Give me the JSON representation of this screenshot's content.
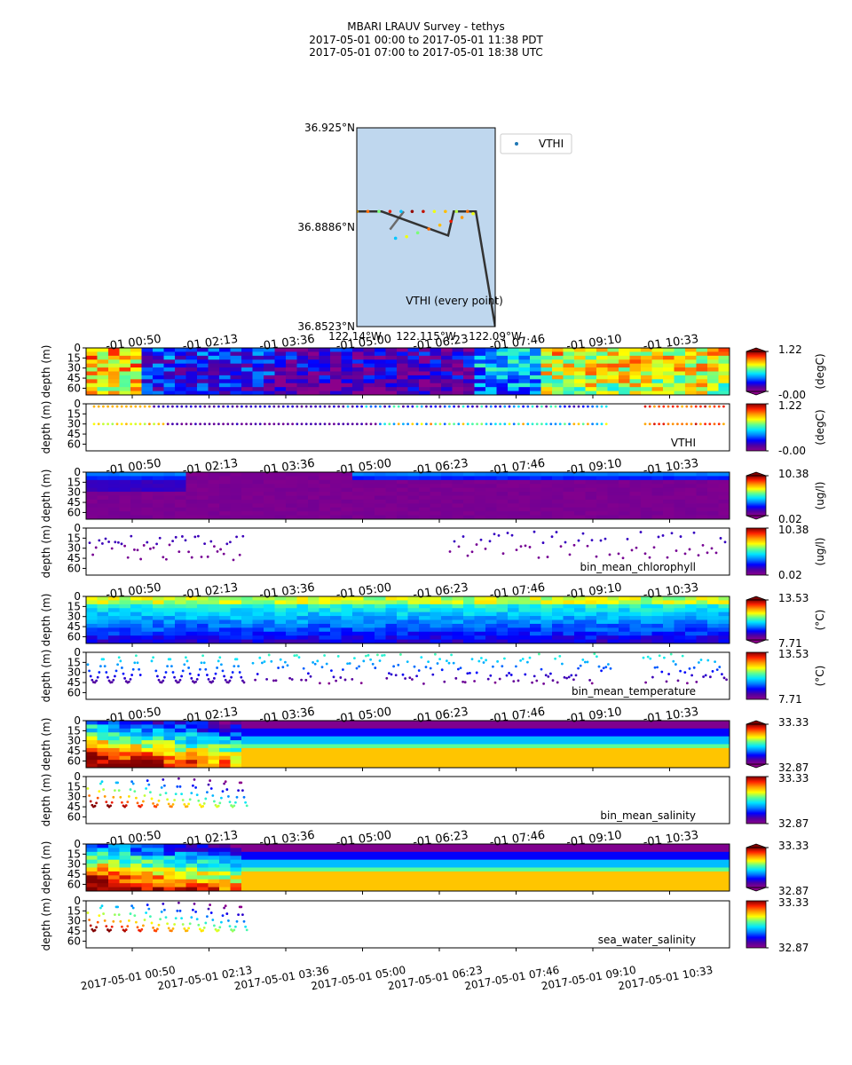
{
  "figure": {
    "title_lines": [
      "MBARI LRAUV Survey - tethys",
      "2017-05-01 00:00  to  2017-05-01 11:38 PDT",
      "2017-05-01 07:00  to  2017-05-01 18:38 UTC"
    ]
  },
  "colors": {
    "map_water": "#bfd7ee",
    "track_line": "#333333",
    "legend_marker": "#1f77b4",
    "colormap": [
      "#8b008b",
      "#5000a0",
      "#0000ff",
      "#0080ff",
      "#00e5ff",
      "#60ff90",
      "#ffff00",
      "#ff9900",
      "#ff2000",
      "#800000"
    ]
  },
  "chart_data": [
    {
      "type": "scatter",
      "panel": "map",
      "lat_ticks": [
        "36.925°N",
        "36.8886°N",
        "36.8523°N"
      ],
      "lon_ticks": [
        "122.14°W",
        "122.115°W",
        "122.09°W"
      ],
      "lat_range": [
        36.8523,
        36.925
      ],
      "lon_range": [
        -122.14,
        -122.09
      ],
      "legend": "VTHI",
      "legend_position": "outside top-right",
      "annotation": "VTHI (every point)",
      "track": [
        {
          "lon": -122.141,
          "lat": 36.8944
        },
        {
          "lon": -122.131,
          "lat": 36.8944
        },
        {
          "lon": -122.107,
          "lat": 36.8856
        },
        {
          "lon": -122.105,
          "lat": 36.8944
        },
        {
          "lon": -122.097,
          "lat": 36.8944
        },
        {
          "lon": -122.09,
          "lat": 36.8523
        }
      ],
      "faint_track": [
        {
          "lon": -122.123,
          "lat": 36.8944
        },
        {
          "lon": -122.128,
          "lat": 36.8878
        }
      ],
      "samples": [
        {
          "lon": -122.14,
          "lat": 36.8944,
          "value": 0.9
        },
        {
          "lon": -122.136,
          "lat": 36.8944,
          "value": 1.0
        },
        {
          "lon": -122.132,
          "lat": 36.8944,
          "value": 0.7
        },
        {
          "lon": -122.128,
          "lat": 36.8944,
          "value": 1.1
        },
        {
          "lon": -122.124,
          "lat": 36.8944,
          "value": 0.5
        },
        {
          "lon": -122.12,
          "lat": 36.8944,
          "value": 1.2
        },
        {
          "lon": -122.116,
          "lat": 36.8944,
          "value": 1.15
        },
        {
          "lon": -122.112,
          "lat": 36.8944,
          "value": 0.8
        },
        {
          "lon": -122.108,
          "lat": 36.8944,
          "value": 0.9
        },
        {
          "lon": -122.104,
          "lat": 36.8944,
          "value": 0.75
        },
        {
          "lon": -122.1,
          "lat": 36.8944,
          "value": 1.0
        },
        {
          "lon": -122.098,
          "lat": 36.8936,
          "value": 0.8
        },
        {
          "lon": -122.102,
          "lat": 36.8922,
          "value": 0.95
        },
        {
          "lon": -122.106,
          "lat": 36.8908,
          "value": 1.1
        },
        {
          "lon": -122.11,
          "lat": 36.8894,
          "value": 0.9
        },
        {
          "lon": -122.114,
          "lat": 36.888,
          "value": 1.0
        },
        {
          "lon": -122.118,
          "lat": 36.8866,
          "value": 0.7
        },
        {
          "lon": -122.122,
          "lat": 36.8852,
          "value": 0.8
        },
        {
          "lon": -122.126,
          "lat": 36.8846,
          "value": 0.5
        }
      ]
    },
    {
      "type": "heatmap",
      "panel": "contour",
      "variable": "VTHI",
      "x_ticks": [
        "00:50",
        "02:13",
        "03:36",
        "05:00",
        "06:23",
        "07:46",
        "09:10",
        "10:33"
      ],
      "ylabel": "depth (m)",
      "y_ticks": [
        0,
        15,
        30,
        45,
        60
      ],
      "ylim": [
        0,
        70
      ],
      "colorbar": {
        "min": "-0.00",
        "max": "1.22",
        "unit": "(degC)"
      }
    },
    {
      "type": "scatter",
      "panel": "points",
      "variable": "VTHI",
      "label": "VTHI",
      "ylabel": "depth (m)",
      "y_ticks": [
        0,
        15,
        30,
        45,
        60
      ],
      "ylim": [
        0,
        70
      ],
      "colorbar": {
        "min": "-0.00",
        "max": "1.22",
        "unit": "(degC)"
      }
    },
    {
      "type": "heatmap",
      "panel": "contour",
      "variable": "chlorophyll",
      "x_ticks": [
        "00:50",
        "02:13",
        "03:36",
        "05:00",
        "06:23",
        "07:46",
        "09:10",
        "10:33"
      ],
      "ylabel": "depth (m)",
      "y_ticks": [
        0,
        15,
        30,
        45,
        60
      ],
      "ylim": [
        0,
        70
      ],
      "colorbar": {
        "min": "0.02",
        "max": "10.38",
        "unit": "(ug/l)"
      }
    },
    {
      "type": "scatter",
      "panel": "points",
      "variable": "chlorophyll",
      "label": "bin_mean_chlorophyll",
      "ylabel": "depth (m)",
      "y_ticks": [
        0,
        15,
        30,
        45,
        60
      ],
      "ylim": [
        0,
        70
      ],
      "colorbar": {
        "min": "0.02",
        "max": "10.38",
        "unit": "(ug/l)"
      }
    },
    {
      "type": "heatmap",
      "panel": "contour",
      "variable": "temperature",
      "x_ticks": [
        "00:50",
        "02:13",
        "03:36",
        "05:00",
        "06:23",
        "07:46",
        "09:10",
        "10:33"
      ],
      "ylabel": "depth (m)",
      "y_ticks": [
        0,
        15,
        30,
        45,
        60
      ],
      "ylim": [
        0,
        70
      ],
      "colorbar": {
        "min": "7.71",
        "max": "13.53",
        "unit": "(°C)"
      }
    },
    {
      "type": "scatter",
      "panel": "points",
      "variable": "temperature",
      "label": "bin_mean_temperature",
      "ylabel": "depth (m)",
      "y_ticks": [
        0,
        15,
        30,
        45,
        60
      ],
      "ylim": [
        0,
        70
      ],
      "colorbar": {
        "min": "7.71",
        "max": "13.53",
        "unit": "(°C)"
      }
    },
    {
      "type": "heatmap",
      "panel": "contour",
      "variable": "salinity",
      "x_ticks": [
        "00:50",
        "02:13",
        "03:36",
        "05:00",
        "06:23",
        "07:46",
        "09:10",
        "10:33"
      ],
      "ylabel": "depth (m)",
      "y_ticks": [
        0,
        15,
        30,
        45,
        60
      ],
      "ylim": [
        0,
        70
      ],
      "colorbar": {
        "min": "32.87",
        "max": "33.33",
        "unit": ""
      }
    },
    {
      "type": "scatter",
      "panel": "points",
      "variable": "salinity",
      "label": "bin_mean_salinity",
      "ylabel": "depth (m)",
      "y_ticks": [
        0,
        15,
        30,
        45,
        60
      ],
      "ylim": [
        0,
        70
      ],
      "colorbar": {
        "min": "32.87",
        "max": "33.33",
        "unit": ""
      }
    },
    {
      "type": "heatmap",
      "panel": "contour",
      "variable": "sea_water_salinity",
      "x_ticks": [
        "00:50",
        "02:13",
        "03:36",
        "05:00",
        "06:23",
        "07:46",
        "09:10",
        "10:33"
      ],
      "ylabel": "depth (m)",
      "y_ticks": [
        0,
        15,
        30,
        45,
        60
      ],
      "ylim": [
        0,
        70
      ],
      "colorbar": {
        "min": "32.87",
        "max": "33.33",
        "unit": ""
      }
    },
    {
      "type": "scatter",
      "panel": "points",
      "variable": "sea_water_salinity",
      "label": "sea_water_salinity",
      "ylabel": "depth (m)",
      "y_ticks": [
        0,
        15,
        30,
        45,
        60
      ],
      "ylim": [
        0,
        70
      ],
      "x_ticks": [
        "2017-05-01 00:50",
        "2017-05-01 02:13",
        "2017-05-01 03:36",
        "2017-05-01 05:00",
        "2017-05-01 06:23",
        "2017-05-01 07:46",
        "2017-05-01 09:10",
        "2017-05-01 10:33"
      ],
      "colorbar": {
        "min": "32.87",
        "max": "33.33",
        "unit": ""
      }
    }
  ]
}
